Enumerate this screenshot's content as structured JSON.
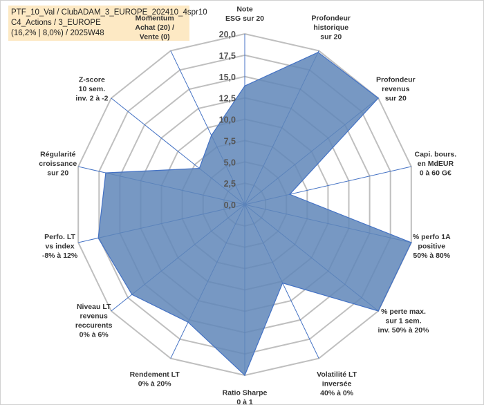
{
  "info": {
    "line1": "PTF_10_Val / ClubADAM_3_EUROPE_202410_4spr10",
    "line2": "C4_Actions / 3_EUROPE",
    "line3": "(16,2% | 8,0%) / 2025W48"
  },
  "chart_data": {
    "type": "radar",
    "rmin": 0,
    "rmax": 20,
    "ticks": [
      "0,0",
      "2,5",
      "5,0",
      "7,5",
      "10,0",
      "12,5",
      "15,0",
      "17,5",
      "20,0"
    ],
    "tick_values": [
      0,
      2.5,
      5,
      7.5,
      10,
      12.5,
      15,
      17.5,
      20
    ],
    "fill_color": "#5f86b8",
    "line_color": "#4472c4",
    "axes": [
      {
        "label": [
          "Note",
          "ESG sur 20"
        ],
        "value": 13.9
      },
      {
        "label": [
          "Profondeur",
          "historique",
          "sur 20"
        ],
        "value": 19.8
      },
      {
        "label": [
          "Profondeur",
          "revenus",
          "sur 20"
        ],
        "value": 20.0
      },
      {
        "label": [
          "Capi. bours.",
          "en MdEUR",
          "0 à 60 G€"
        ],
        "value": 5.4
      },
      {
        "label": [
          "% perfo 1A",
          "positive",
          "50% à 80%"
        ],
        "value": 20.0
      },
      {
        "label": [
          "% perte max.",
          "sur 1 sem.",
          "inv. 50% à 20%"
        ],
        "value": 20.0
      },
      {
        "label": [
          "Volatilité LT",
          "inversée",
          "40% à 0%"
        ],
        "value": 10.2
      },
      {
        "label": [
          "Ratio Sharpe",
          "0 à 1"
        ],
        "value": 20.0
      },
      {
        "label": [
          "Rendement LT",
          "0% à 20%"
        ],
        "value": 15.3
      },
      {
        "label": [
          "Niveau LT",
          "revenus",
          "reccurents",
          "0% à 6%"
        ],
        "value": 16.9
      },
      {
        "label": [
          "Perfo. LT",
          "vs index",
          "-8% à 12%"
        ],
        "value": 17.6
      },
      {
        "label": [
          "Régularité",
          "croissance",
          "sur 20"
        ],
        "value": 16.7
      },
      {
        "label": [
          "Z-score",
          "10 sem.",
          "inv. 2 à -2"
        ],
        "value": 6.8
      },
      {
        "label": [
          "Momentum",
          "Achat (20) /",
          "Vente (0)"
        ],
        "value": 9.0
      }
    ]
  }
}
